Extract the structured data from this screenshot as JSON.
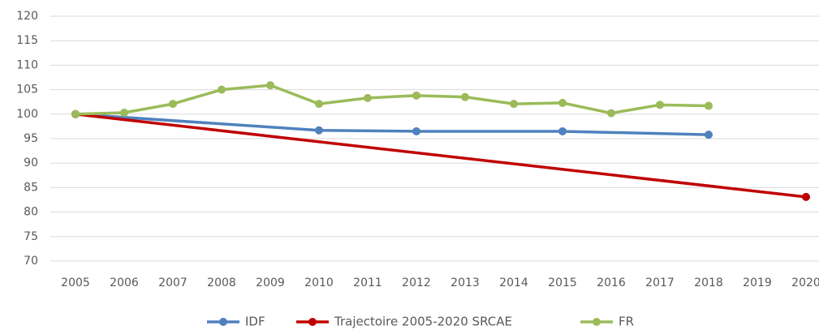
{
  "chart_data": {
    "type": "line",
    "xlim": [
      2005,
      2020
    ],
    "xticks": [
      2005,
      2006,
      2007,
      2008,
      2009,
      2010,
      2011,
      2012,
      2013,
      2014,
      2015,
      2016,
      2017,
      2018,
      2019,
      2020
    ],
    "ylim": [
      70,
      120
    ],
    "yticks": [
      70,
      75,
      80,
      85,
      90,
      95,
      100,
      105,
      110,
      115,
      120
    ],
    "grid": true,
    "legend": "bottom",
    "series": [
      {
        "name": "IDF",
        "color": "#4f81bd",
        "x": [
          2005,
          2010,
          2012,
          2015,
          2018
        ],
        "values": [
          100,
          96.7,
          96.5,
          96.5,
          95.8
        ]
      },
      {
        "name": "Trajectoire 2005-2020 SRCAE",
        "color": "#c00000",
        "x": [
          2005,
          2020
        ],
        "values": [
          100,
          83.1
        ]
      },
      {
        "name": "FR",
        "color": "#9bbb59",
        "x": [
          2005,
          2006,
          2007,
          2008,
          2009,
          2010,
          2011,
          2012,
          2013,
          2014,
          2015,
          2016,
          2017,
          2018
        ],
        "values": [
          100,
          100.3,
          102.1,
          105,
          105.9,
          102.1,
          103.3,
          103.8,
          103.5,
          102.1,
          102.3,
          100.2,
          101.9,
          101.7
        ]
      }
    ]
  }
}
